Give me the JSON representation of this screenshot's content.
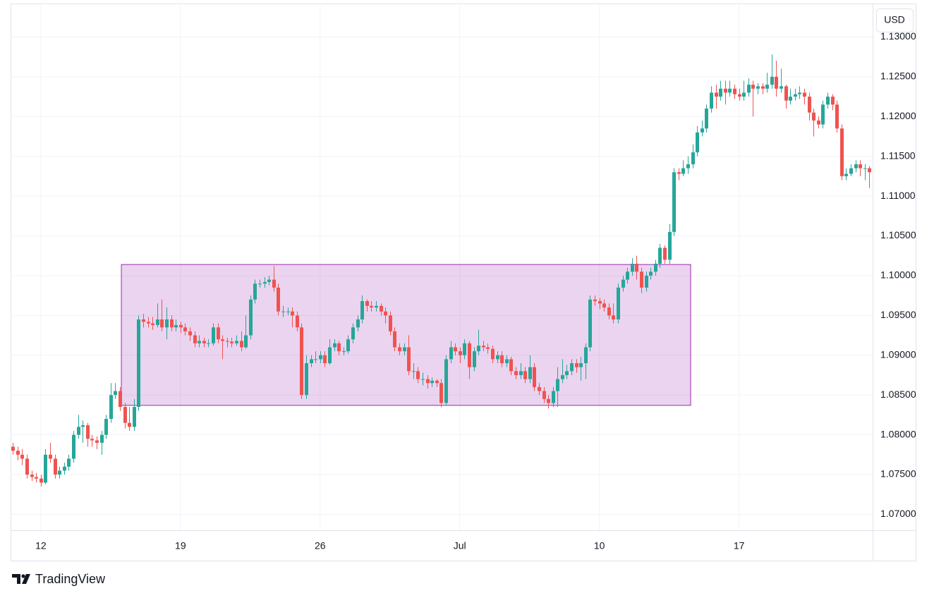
{
  "chart_data": {
    "type": "candlestick",
    "currency": "USD",
    "brand": "TradingView",
    "up_color": "#26a69a",
    "down_color": "#ef5350",
    "grid": true,
    "xlim": [
      -0.5,
      184.7
    ],
    "xticks": [
      {
        "value": 6,
        "label": "12"
      },
      {
        "value": 36,
        "label": "19"
      },
      {
        "value": 66,
        "label": "26"
      },
      {
        "value": 96,
        "label": "Jul"
      },
      {
        "value": 126,
        "label": "10"
      },
      {
        "value": 156,
        "label": "17"
      }
    ],
    "ylim": [
      1.068,
      1.1342
    ],
    "yticks": [
      {
        "value": 1.07,
        "label": "1.07000"
      },
      {
        "value": 1.075,
        "label": "1.07500"
      },
      {
        "value": 1.08,
        "label": "1.08000"
      },
      {
        "value": 1.085,
        "label": "1.08500"
      },
      {
        "value": 1.09,
        "label": "1.09000"
      },
      {
        "value": 1.095,
        "label": "1.09500"
      },
      {
        "value": 1.1,
        "label": "1.10000"
      },
      {
        "value": 1.105,
        "label": "1.10500"
      },
      {
        "value": 1.11,
        "label": "1.11000"
      },
      {
        "value": 1.115,
        "label": "1.11500"
      },
      {
        "value": 1.12,
        "label": "1.12000"
      },
      {
        "value": 1.125,
        "label": "1.12500"
      },
      {
        "value": 1.13,
        "label": "1.13000"
      }
    ],
    "highlight": {
      "color": "#9c27b0",
      "xlim": [
        23.3,
        145.6
      ],
      "ylim": [
        1.0837,
        1.1014
      ]
    },
    "open": [
      1.0785,
      1.078,
      1.0775,
      1.077,
      1.075,
      1.0747,
      1.0745,
      1.074,
      1.0775,
      1.077,
      1.075,
      1.0755,
      1.076,
      1.077,
      1.08,
      1.081,
      1.0812,
      1.0795,
      1.0793,
      1.079,
      1.08,
      1.082,
      1.085,
      1.0855,
      1.0835,
      1.0815,
      1.081,
      1.0835,
      1.0945,
      1.0942,
      1.094,
      1.0938,
      1.0945,
      1.0935,
      1.0945,
      1.0935,
      1.0938,
      1.0935,
      1.093,
      1.0925,
      1.0915,
      1.0918,
      1.0915,
      1.0915,
      1.0935,
      1.092,
      1.0918,
      1.0917,
      1.0915,
      1.0918,
      1.091,
      1.0925,
      1.097,
      1.099,
      1.099,
      1.0992,
      1.0995,
      1.0985,
      1.0955,
      1.0955,
      1.0955,
      1.095,
      1.0935,
      1.085,
      1.089,
      1.0895,
      1.0895,
      1.09,
      1.089,
      1.091,
      1.0915,
      1.0905,
      1.0905,
      1.092,
      1.0935,
      1.0945,
      1.0968,
      1.0962,
      1.096,
      1.0962,
      1.0955,
      1.095,
      1.093,
      1.091,
      1.0905,
      1.091,
      1.088,
      1.088,
      1.087,
      1.087,
      1.0865,
      1.0868,
      1.0865,
      1.084,
      1.0895,
      1.091,
      1.0905,
      1.09,
      1.0915,
      1.0885,
      1.0905,
      1.0912,
      1.091,
      1.0908,
      1.0895,
      1.09,
      1.089,
      1.0895,
      1.088,
      1.0875,
      1.088,
      1.087,
      1.0885,
      1.086,
      1.0855,
      1.0845,
      1.084,
      1.0855,
      1.087,
      1.0875,
      1.088,
      1.089,
      1.0885,
      1.089,
      1.091,
      1.097,
      1.0968,
      1.0965,
      1.096,
      1.095,
      1.0945,
      1.0985,
      1.0995,
      1.1005,
      1.1015,
      1.1005,
      1.0985,
      1.1,
      1.1005,
      1.1015,
      1.1035,
      1.102,
      1.1055,
      1.113,
      1.1128,
      1.1135,
      1.114,
      1.1155,
      1.118,
      1.1185,
      1.121,
      1.123,
      1.1225,
      1.1235,
      1.123,
      1.1235,
      1.1228,
      1.1225,
      1.123,
      1.124,
      1.1235,
      1.1238,
      1.1235,
      1.124,
      1.125,
      1.1235,
      1.1238,
      1.122,
      1.1225,
      1.1228,
      1.123,
      1.1225,
      1.1205,
      1.1195,
      1.119,
      1.1215,
      1.1225,
      1.1215,
      1.1185,
      1.1125,
      1.1128,
      1.1135,
      1.114,
      1.1135,
      1.1135
    ],
    "high": [
      1.079,
      1.0785,
      1.0782,
      1.0775,
      1.0755,
      1.0752,
      1.075,
      1.0782,
      1.079,
      1.0775,
      1.076,
      1.0765,
      1.0775,
      1.0805,
      1.0825,
      1.0818,
      1.0815,
      1.08,
      1.0798,
      1.0805,
      1.0825,
      1.0865,
      1.0865,
      1.086,
      1.084,
      1.0835,
      1.0845,
      1.095,
      1.0952,
      1.0948,
      1.0948,
      1.0965,
      1.097,
      1.096,
      1.095,
      1.0945,
      1.0942,
      1.094,
      1.0935,
      1.093,
      1.0925,
      1.0922,
      1.092,
      1.094,
      1.094,
      1.0925,
      1.0922,
      1.0922,
      1.0925,
      1.093,
      1.095,
      1.0975,
      1.0995,
      1.0995,
      1.0998,
      1.1,
      1.1012,
      1.099,
      1.0962,
      1.096,
      1.096,
      1.0955,
      1.094,
      1.09,
      1.09,
      1.0905,
      1.0905,
      1.0905,
      1.092,
      1.092,
      1.0918,
      1.091,
      1.0925,
      1.094,
      1.095,
      1.0975,
      1.097,
      1.0968,
      1.0968,
      1.0965,
      1.096,
      1.0955,
      1.0935,
      1.0915,
      1.0915,
      1.0925,
      1.089,
      1.0885,
      1.0878,
      1.0875,
      1.0872,
      1.087,
      1.087,
      1.09,
      1.0918,
      1.0915,
      1.091,
      1.092,
      1.0918,
      1.091,
      1.0932,
      1.0918,
      1.0915,
      1.0912,
      1.0905,
      1.0905,
      1.09,
      1.0898,
      1.0885,
      1.089,
      1.0885,
      1.09,
      1.089,
      1.0865,
      1.086,
      1.085,
      1.086,
      1.0885,
      1.0895,
      1.0888,
      1.0895,
      1.0895,
      1.0898,
      1.0915,
      1.0975,
      1.0975,
      1.0972,
      1.097,
      1.0965,
      1.0965,
      1.099,
      1.1,
      1.101,
      1.1022,
      1.1025,
      1.101,
      1.1005,
      1.101,
      1.102,
      1.104,
      1.1038,
      1.1065,
      1.1135,
      1.1135,
      1.1145,
      1.115,
      1.1165,
      1.1188,
      1.1195,
      1.1215,
      1.1238,
      1.124,
      1.1245,
      1.1245,
      1.1245,
      1.124,
      1.1235,
      1.1245,
      1.1248,
      1.1245,
      1.1242,
      1.1242,
      1.1255,
      1.1278,
      1.127,
      1.126,
      1.124,
      1.1235,
      1.1235,
      1.1238,
      1.1235,
      1.123,
      1.121,
      1.12,
      1.122,
      1.123,
      1.1228,
      1.122,
      1.119,
      1.1135,
      1.114,
      1.1145,
      1.1145,
      1.114,
      1.1138
    ],
    "low": [
      1.0775,
      1.0768,
      1.0762,
      1.0745,
      1.0742,
      1.074,
      1.0735,
      1.0738,
      1.0765,
      1.0745,
      1.0745,
      1.075,
      1.0755,
      1.0765,
      1.0795,
      1.079,
      1.0785,
      1.0785,
      1.0782,
      1.0775,
      1.0795,
      1.0815,
      1.0845,
      1.083,
      1.0808,
      1.0805,
      1.0805,
      1.083,
      1.0935,
      1.0935,
      1.0932,
      1.0935,
      1.093,
      1.092,
      1.093,
      1.093,
      1.0928,
      1.0925,
      1.0918,
      1.091,
      1.091,
      1.091,
      1.091,
      1.0912,
      1.0915,
      1.0895,
      1.091,
      1.091,
      1.0912,
      1.0905,
      1.0908,
      1.092,
      1.0965,
      1.0985,
      1.0985,
      1.0988,
      1.098,
      1.095,
      1.0948,
      1.095,
      1.0935,
      1.093,
      1.0845,
      1.0845,
      1.0885,
      1.089,
      1.089,
      1.0885,
      1.0888,
      1.0905,
      1.09,
      1.09,
      1.0902,
      1.0915,
      1.093,
      1.094,
      1.0955,
      1.0955,
      1.0955,
      1.095,
      1.094,
      1.0925,
      1.0905,
      1.09,
      1.09,
      1.0875,
      1.087,
      1.0865,
      1.0862,
      1.0858,
      1.086,
      1.086,
      1.0835,
      1.0838,
      1.089,
      1.09,
      1.089,
      1.0895,
      1.087,
      1.088,
      1.09,
      1.0905,
      1.0902,
      1.089,
      1.089,
      1.0885,
      1.0885,
      1.0875,
      1.087,
      1.087,
      1.0865,
      1.0865,
      1.0855,
      1.085,
      1.084,
      1.0833,
      1.0835,
      1.0835,
      1.0865,
      1.087,
      1.0875,
      1.0878,
      1.0868,
      1.087,
      1.0905,
      1.0962,
      1.0958,
      1.0955,
      1.0945,
      1.094,
      1.094,
      1.098,
      1.099,
      1.1,
      1.0995,
      1.0978,
      1.098,
      1.0995,
      1.1,
      1.101,
      1.1015,
      1.1015,
      1.105,
      1.112,
      1.1125,
      1.1128,
      1.1135,
      1.115,
      1.1175,
      1.118,
      1.1205,
      1.121,
      1.122,
      1.1215,
      1.1225,
      1.1222,
      1.122,
      1.122,
      1.1225,
      1.12,
      1.1228,
      1.1228,
      1.123,
      1.1235,
      1.1225,
      1.123,
      1.121,
      1.1215,
      1.122,
      1.1222,
      1.1215,
      1.1195,
      1.1175,
      1.1185,
      1.1185,
      1.121,
      1.1208,
      1.118,
      1.112,
      1.112,
      1.1125,
      1.113,
      1.1125,
      1.112,
      1.111
    ],
    "close": [
      1.078,
      1.0775,
      1.077,
      1.075,
      1.0747,
      1.0745,
      1.074,
      1.0775,
      1.077,
      1.075,
      1.0755,
      1.076,
      1.077,
      1.08,
      1.081,
      1.0812,
      1.0795,
      1.0793,
      1.079,
      1.08,
      1.082,
      1.085,
      1.0855,
      1.0835,
      1.0815,
      1.081,
      1.0835,
      1.0945,
      1.0942,
      1.094,
      1.0938,
      1.0945,
      1.0935,
      1.0945,
      1.0935,
      1.0938,
      1.0935,
      1.093,
      1.0925,
      1.0915,
      1.0918,
      1.0915,
      1.0915,
      1.0935,
      1.092,
      1.0918,
      1.0917,
      1.0915,
      1.0918,
      1.091,
      1.0925,
      1.097,
      1.099,
      1.099,
      1.0992,
      1.0995,
      1.0985,
      1.0955,
      1.0955,
      1.0955,
      1.095,
      1.0935,
      1.085,
      1.089,
      1.0895,
      1.0895,
      1.09,
      1.089,
      1.091,
      1.0915,
      1.0905,
      1.0905,
      1.092,
      1.0935,
      1.0945,
      1.0968,
      1.0962,
      1.096,
      1.0962,
      1.0955,
      1.095,
      1.093,
      1.091,
      1.0905,
      1.091,
      1.088,
      1.088,
      1.087,
      1.087,
      1.0865,
      1.0868,
      1.0865,
      1.084,
      1.0895,
      1.091,
      1.0905,
      1.09,
      1.0915,
      1.0885,
      1.0905,
      1.0912,
      1.091,
      1.0908,
      1.0895,
      1.09,
      1.089,
      1.0895,
      1.088,
      1.0875,
      1.088,
      1.087,
      1.0885,
      1.086,
      1.0855,
      1.0845,
      1.084,
      1.0855,
      1.087,
      1.0875,
      1.088,
      1.089,
      1.0885,
      1.089,
      1.091,
      1.097,
      1.0968,
      1.0965,
      1.096,
      1.095,
      1.0945,
      1.0985,
      1.0995,
      1.1005,
      1.1015,
      1.1005,
      1.0985,
      1.1,
      1.1005,
      1.1015,
      1.1035,
      1.102,
      1.1055,
      1.113,
      1.1128,
      1.1135,
      1.114,
      1.1155,
      1.118,
      1.1185,
      1.121,
      1.123,
      1.1225,
      1.1235,
      1.123,
      1.1235,
      1.1228,
      1.1225,
      1.123,
      1.124,
      1.1235,
      1.1238,
      1.1235,
      1.124,
      1.125,
      1.1235,
      1.1238,
      1.122,
      1.1225,
      1.1228,
      1.123,
      1.1225,
      1.1205,
      1.1195,
      1.119,
      1.1215,
      1.1225,
      1.1215,
      1.1185,
      1.1125,
      1.1128,
      1.1135,
      1.114,
      1.1135,
      1.1135,
      1.113
    ]
  }
}
